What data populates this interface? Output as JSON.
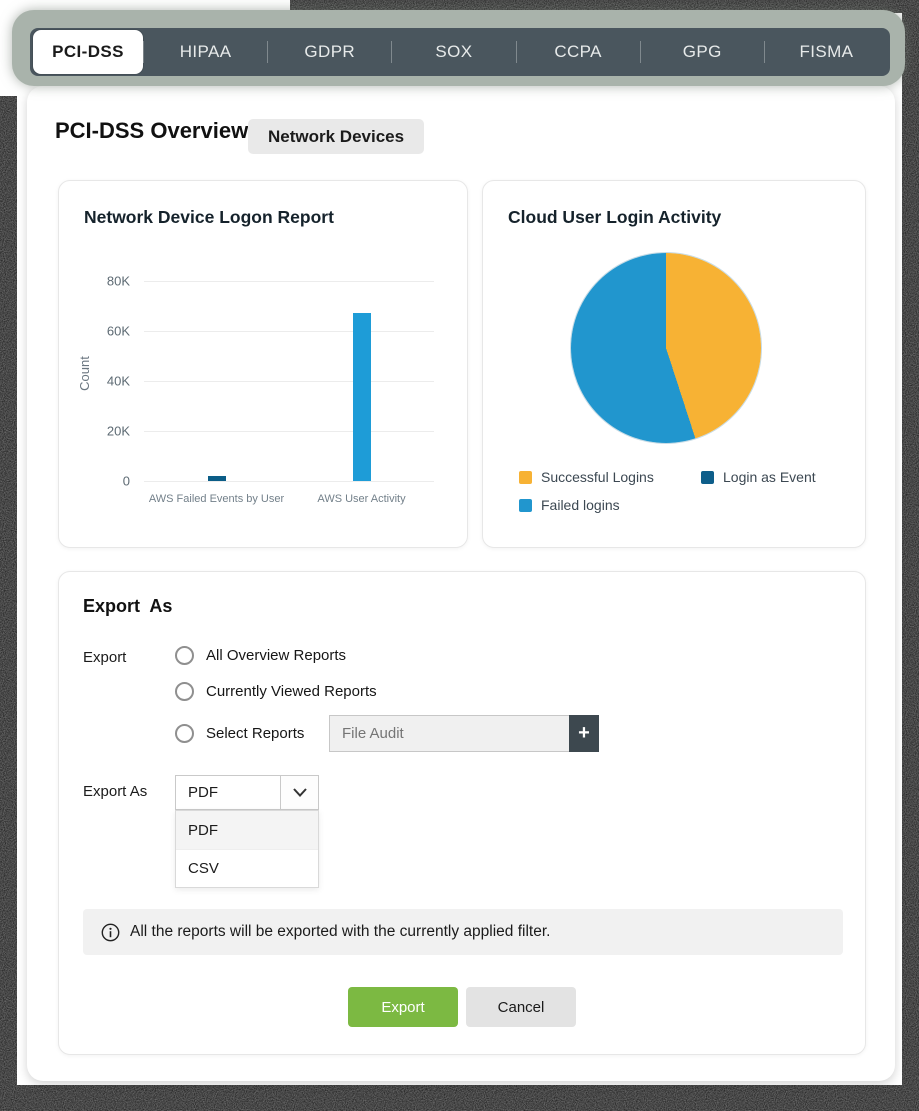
{
  "tabs": {
    "active": "PCI-DSS",
    "items": [
      {
        "label": "PCI-DSS"
      },
      {
        "label": "HIPAA"
      },
      {
        "label": "GDPR"
      },
      {
        "label": "SOX"
      },
      {
        "label": "CCPA"
      },
      {
        "label": "GPG"
      },
      {
        "label": "FISMA"
      }
    ]
  },
  "header": {
    "title": "PCI-DSS Overview",
    "chip": "Network Devices"
  },
  "chart_data": [
    {
      "type": "bar",
      "title": "Network Device Logon Report",
      "xlabel": "",
      "ylabel": "Count",
      "categories": [
        "AWS Failed Events by User",
        "AWS User Activity"
      ],
      "values": [
        2000,
        67000
      ],
      "colors": [
        "#0b5d87",
        "#1e9cd7"
      ],
      "ylim": [
        0,
        80000
      ],
      "yticks": [
        "80K",
        "60K",
        "40K",
        "20K",
        "0"
      ],
      "grid": true,
      "legend_position": "none"
    },
    {
      "type": "pie",
      "title": "Cloud User Login Activity",
      "slices": [
        {
          "label": "Successful Logins",
          "value": 45,
          "color": "#f7b234"
        },
        {
          "label": "Login as Event",
          "value": 0,
          "color": "#0e5e8a"
        },
        {
          "label": "Failed logins",
          "value": 55,
          "color": "#2196ce"
        }
      ],
      "legend_position": "bottom"
    }
  ],
  "export_panel": {
    "title": "Export  As",
    "export_label": "Export",
    "radios": [
      {
        "label": "All Overview Reports",
        "checked": false
      },
      {
        "label": "Currently Viewed Reports",
        "checked": false
      },
      {
        "label": "Select Reports",
        "checked": false
      }
    ],
    "report_input": {
      "value": "",
      "placeholder": "File Audit"
    },
    "add_button_label": "+",
    "export_as_label": "Export As",
    "format_select": {
      "value": "PDF",
      "options": [
        "PDF",
        "CSV"
      ]
    },
    "info_text": "All the reports will be exported with the currently applied filter.",
    "buttons": {
      "export": "Export",
      "cancel": "Cancel"
    },
    "colors": {
      "export_button": "#7cb942",
      "accent_dark": "#3d484f",
      "tabbar": "#4a565e",
      "chrome": "#a9b3ab"
    }
  }
}
